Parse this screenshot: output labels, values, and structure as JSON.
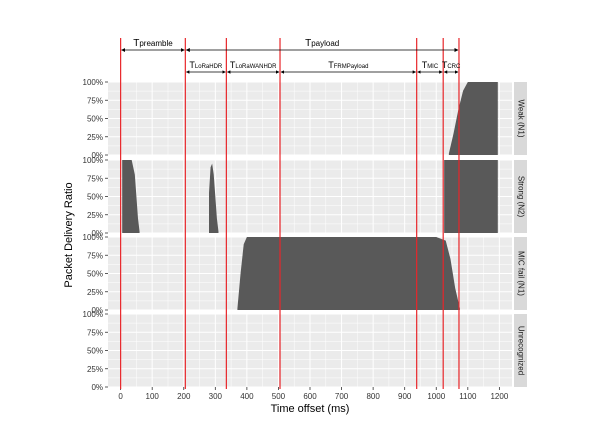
{
  "chart_data": {
    "type": "area",
    "xlabel": "Time offset (ms)",
    "ylabel": "Packet Delivery Ratio",
    "xlim": [
      -40,
      1240
    ],
    "x_ticks": [
      "0",
      "100",
      "200",
      "300",
      "400",
      "500",
      "600",
      "700",
      "800",
      "900",
      "1000",
      "1100",
      "1200"
    ],
    "y_ticks": [
      "0%",
      "25%",
      "50%",
      "75%",
      "100%"
    ],
    "grid": true,
    "panel_background": "#ebebeb",
    "strip_background": "#d9d9d9",
    "fill_color": "#595959",
    "marker_color": "#e8262a",
    "markers_ms": [
      0,
      205,
      335,
      505,
      938,
      1022,
      1072
    ],
    "segments": {
      "preamble": {
        "main": "T",
        "sub": "preamble"
      },
      "payload": {
        "main": "T",
        "sub": "payload"
      },
      "parts": [
        {
          "main": "T",
          "sub": "LoRaHDR"
        },
        {
          "main": "T",
          "sub": "LoRaWANHDR"
        },
        {
          "main": "T",
          "sub": "FRMPayload"
        },
        {
          "main": "T",
          "sub": "MIC"
        },
        {
          "main": "T",
          "sub": "CRC"
        }
      ]
    },
    "panels": [
      {
        "label": "Weak (N1)",
        "regions": [
          {
            "x": [
              1040,
              1055,
              1070,
              1085,
              1100,
              1115,
              1130,
              1145,
              1160,
              1175,
              1195
            ],
            "y": [
              0.02,
              0.3,
              0.62,
              0.88,
              1.0,
              1.0,
              1.0,
              1.0,
              1.0,
              1.0,
              1.0
            ]
          }
        ]
      },
      {
        "label": "Strong (N2)",
        "regions": [
          {
            "x": [
              5,
              20,
              35,
              45,
              50,
              55,
              60
            ],
            "y": [
              1.0,
              1.0,
              1.0,
              0.8,
              0.5,
              0.2,
              0.02
            ]
          },
          {
            "x": [
              280,
              285,
              290,
              295,
              300,
              305,
              310
            ],
            "y": [
              0.55,
              0.9,
              0.95,
              0.8,
              0.5,
              0.2,
              0.02
            ]
          },
          {
            "x": [
              1025,
              1050,
              1100,
              1150,
              1195
            ],
            "y": [
              1.0,
              1.0,
              1.0,
              1.0,
              1.0
            ]
          }
        ]
      },
      {
        "label": "MIC fail (N1)",
        "regions": [
          {
            "x": [
              370,
              380,
              390,
              400,
              500,
              600,
              700,
              800,
              900,
              1000,
              1030,
              1045,
              1060,
              1075
            ],
            "y": [
              0.02,
              0.5,
              0.9,
              1.0,
              1.0,
              1.0,
              1.0,
              1.0,
              1.0,
              1.0,
              0.95,
              0.7,
              0.3,
              0.02
            ]
          }
        ]
      },
      {
        "label": "Unrecognized",
        "regions": []
      }
    ]
  }
}
